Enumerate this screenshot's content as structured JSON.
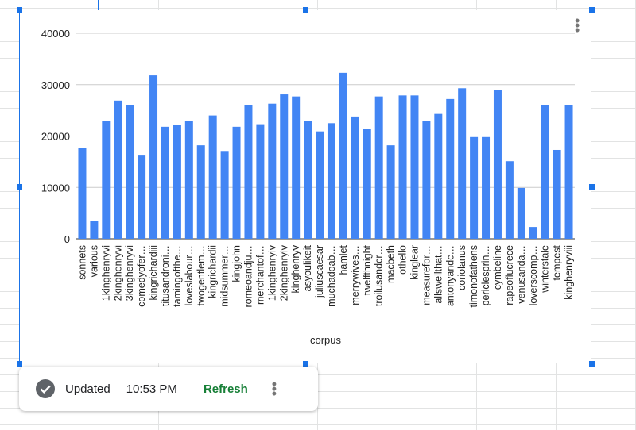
{
  "chart_data": {
    "type": "bar",
    "title": "",
    "xlabel": "corpus",
    "ylabel": "",
    "ylim": [
      0,
      40000
    ],
    "yticks": [
      0,
      10000,
      20000,
      30000,
      40000
    ],
    "grid": true,
    "bar_color": "#4285f4",
    "categories": [
      "sonnets",
      "various",
      "1kinghenryvi",
      "2kinghenryvi",
      "3kinghenryvi",
      "comedyofer…",
      "kingrichardiii",
      "titusandroni…",
      "tamingofthe…",
      "loveslabour…",
      "twogentlem…",
      "kingrichardii",
      "midsummer…",
      "kingjohn",
      "romeoandju…",
      "merchantof…",
      "1kinghenryiv",
      "2kinghenryiv",
      "kinghenryv",
      "asyoulikeit",
      "juliuscaesar",
      "muchadoab…",
      "hamlet",
      "merrywives…",
      "twelfthnight",
      "troilusandcr…",
      "macbeth",
      "othello",
      "kinglear",
      "measurefor…",
      "allswellthat…",
      "antonyandc…",
      "coriolanus",
      "timonofathens",
      "periclesprin…",
      "cymbeline",
      "rapeoflucrece",
      "venusanda…",
      "loverscomp…",
      "winterstale",
      "tempest",
      "kinghenryviii"
    ],
    "values": [
      17700,
      3400,
      23000,
      26900,
      26100,
      16200,
      31800,
      21800,
      22100,
      23000,
      18200,
      24000,
      17100,
      21800,
      26100,
      22300,
      26300,
      28100,
      27700,
      22900,
      20900,
      22500,
      32300,
      23800,
      21400,
      27700,
      18200,
      27900,
      27900,
      23000,
      24300,
      27200,
      29300,
      19800,
      19800,
      29000,
      15100,
      9900,
      2300,
      26100,
      17300,
      26100
    ]
  },
  "toast": {
    "status": "Updated",
    "time": "10:53 PM",
    "refresh_label": "Refresh",
    "check_icon": "check-circle-icon",
    "kebab_icon": "more-vert-icon"
  },
  "chart_menu_icon": "more-vert-icon"
}
